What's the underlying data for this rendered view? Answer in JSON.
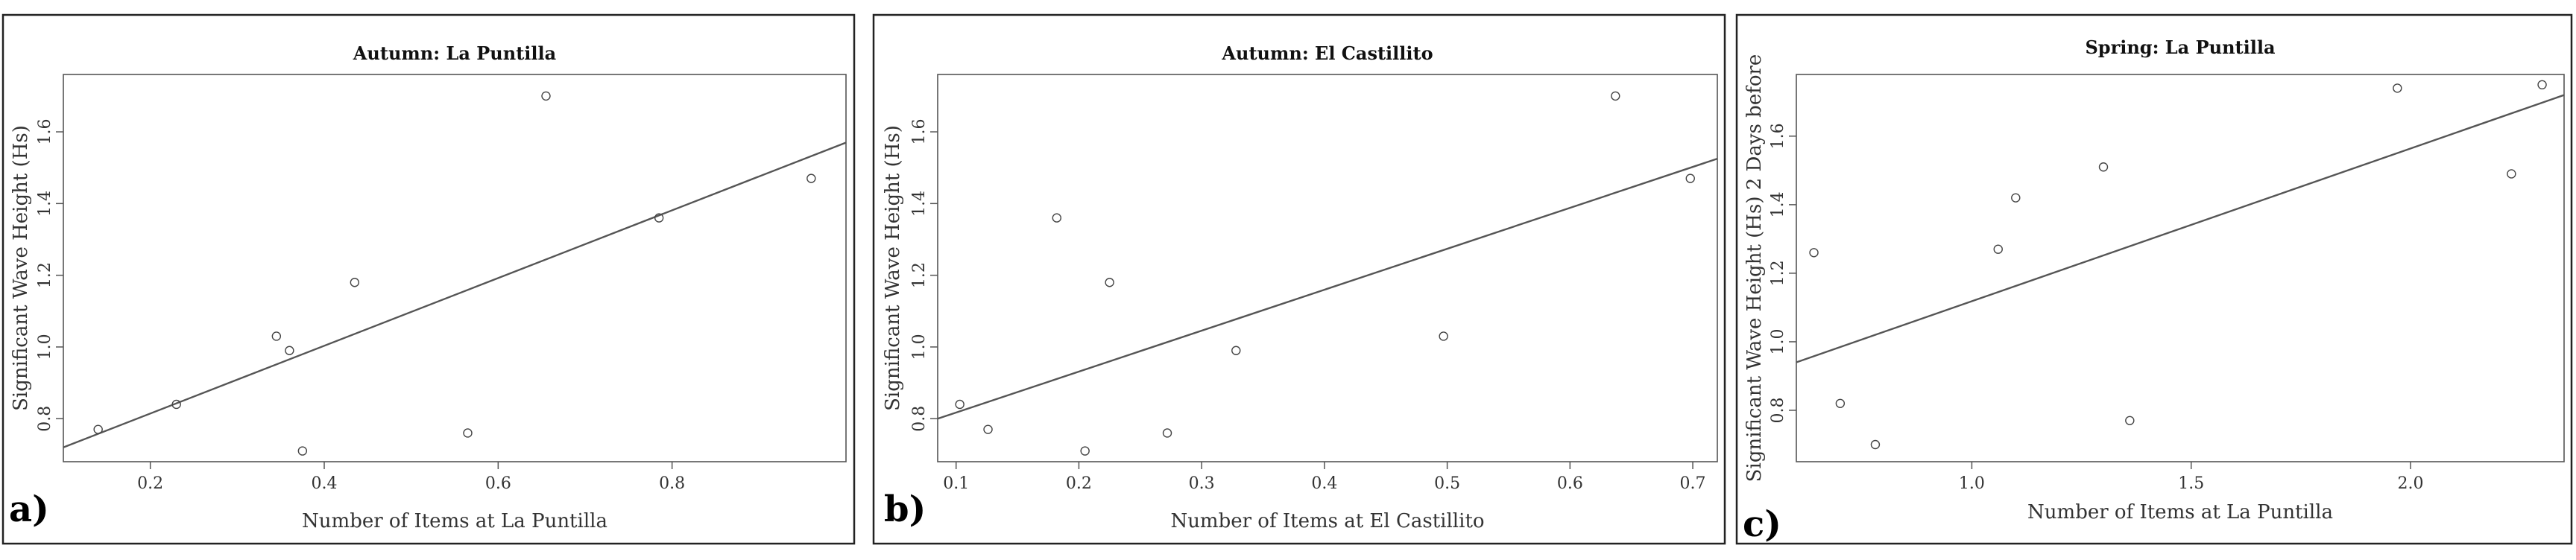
{
  "chart_data": [
    {
      "type": "scatter",
      "panel": "a)",
      "title": "Autumn: La Puntilla",
      "xlabel": "Number of Items at La Puntilla",
      "ylabel": "Significant Wave Height (Hs)",
      "xlim": [
        0.1,
        1.0
      ],
      "ylim": [
        0.68,
        1.76
      ],
      "xticks": [
        0.2,
        0.4,
        0.6,
        0.8
      ],
      "yticks": [
        0.8,
        1.0,
        1.2,
        1.4,
        1.6
      ],
      "grid": false,
      "points": [
        {
          "x": 0.14,
          "y": 0.77
        },
        {
          "x": 0.23,
          "y": 0.84
        },
        {
          "x": 0.345,
          "y": 1.03
        },
        {
          "x": 0.36,
          "y": 0.99
        },
        {
          "x": 0.375,
          "y": 0.71
        },
        {
          "x": 0.435,
          "y": 1.18
        },
        {
          "x": 0.565,
          "y": 0.76
        },
        {
          "x": 0.655,
          "y": 1.7
        },
        {
          "x": 0.785,
          "y": 1.36
        },
        {
          "x": 0.96,
          "y": 1.47
        }
      ],
      "fit_line": [
        {
          "x": 0.1,
          "y": 0.72
        },
        {
          "x": 1.0,
          "y": 1.57
        }
      ]
    },
    {
      "type": "scatter",
      "panel": "b)",
      "title": "Autumn: El Castillito",
      "xlabel": "Number of Items at El Castillito",
      "ylabel": "Significant Wave Height (Hs)",
      "xlim": [
        0.085,
        0.72
      ],
      "ylim": [
        0.68,
        1.76
      ],
      "xticks": [
        0.1,
        0.2,
        0.3,
        0.4,
        0.5,
        0.6,
        0.7
      ],
      "yticks": [
        0.8,
        1.0,
        1.2,
        1.4,
        1.6
      ],
      "grid": false,
      "points": [
        {
          "x": 0.103,
          "y": 0.84
        },
        {
          "x": 0.126,
          "y": 0.77
        },
        {
          "x": 0.182,
          "y": 1.36
        },
        {
          "x": 0.205,
          "y": 0.71
        },
        {
          "x": 0.225,
          "y": 1.18
        },
        {
          "x": 0.272,
          "y": 0.76
        },
        {
          "x": 0.328,
          "y": 0.99
        },
        {
          "x": 0.497,
          "y": 1.03
        },
        {
          "x": 0.637,
          "y": 1.7
        },
        {
          "x": 0.698,
          "y": 1.47
        }
      ],
      "fit_line": [
        {
          "x": 0.085,
          "y": 0.8
        },
        {
          "x": 0.72,
          "y": 1.525
        }
      ]
    },
    {
      "type": "scatter",
      "panel": "c)",
      "title": "Spring: La Puntilla",
      "xlabel": "Number of Items at La Puntilla",
      "ylabel": "Significant Wave Height (Hs) 2 Days before",
      "xlim": [
        0.6,
        2.35
      ],
      "ylim": [
        0.65,
        1.78
      ],
      "xticks": [
        1.0,
        1.5,
        2.0
      ],
      "yticks": [
        0.8,
        1.0,
        1.2,
        1.4,
        1.6
      ],
      "grid": false,
      "points": [
        {
          "x": 0.64,
          "y": 1.26
        },
        {
          "x": 0.7,
          "y": 0.82
        },
        {
          "x": 0.78,
          "y": 0.7
        },
        {
          "x": 1.06,
          "y": 1.27
        },
        {
          "x": 1.1,
          "y": 1.42
        },
        {
          "x": 1.3,
          "y": 1.51
        },
        {
          "x": 1.36,
          "y": 0.77
        },
        {
          "x": 1.97,
          "y": 1.74
        },
        {
          "x": 2.23,
          "y": 1.49
        },
        {
          "x": 2.3,
          "y": 1.75
        }
      ],
      "fit_line": [
        {
          "x": 0.6,
          "y": 0.94
        },
        {
          "x": 2.35,
          "y": 1.72
        }
      ]
    }
  ]
}
